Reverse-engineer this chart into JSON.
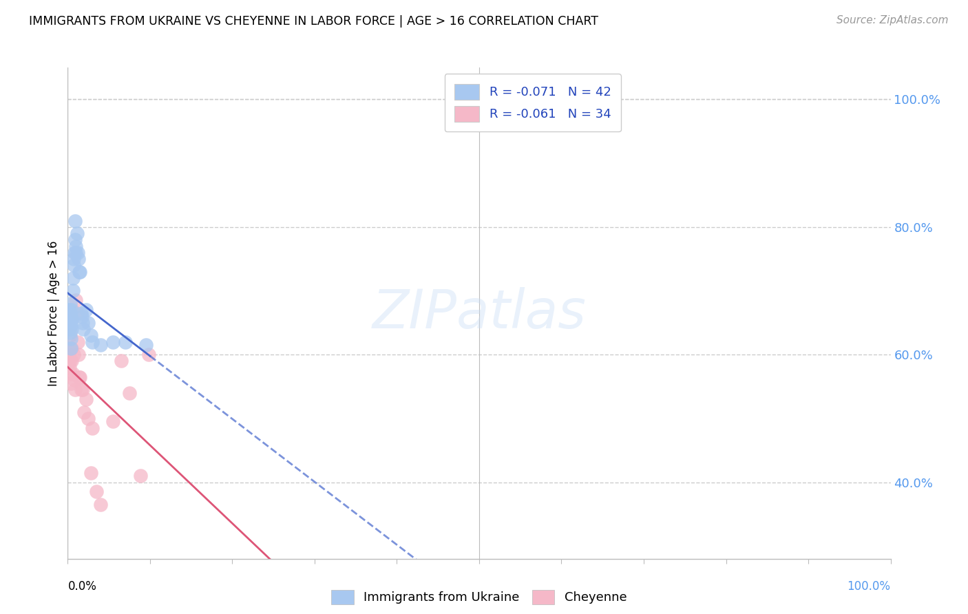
{
  "title": "IMMIGRANTS FROM UKRAINE VS CHEYENNE IN LABOR FORCE | AGE > 16 CORRELATION CHART",
  "source": "Source: ZipAtlas.com",
  "ylabel": "In Labor Force | Age > 16",
  "legend_r1": "R = -0.071",
  "legend_n1": "N = 42",
  "legend_r2": "R = -0.061",
  "legend_n2": "N = 34",
  "legend_label1": "Immigrants from Ukraine",
  "legend_label2": "Cheyenne",
  "blue_color": "#a8c8f0",
  "pink_color": "#f5b8c8",
  "blue_line_color": "#4466cc",
  "pink_line_color": "#dd5577",
  "ytick_color": "#5599ee",
  "background_color": "#ffffff",
  "grid_color": "#cccccc",
  "ukraine_x": [
    0.001,
    0.001,
    0.002,
    0.002,
    0.002,
    0.003,
    0.003,
    0.003,
    0.003,
    0.004,
    0.004,
    0.004,
    0.004,
    0.005,
    0.005,
    0.005,
    0.006,
    0.006,
    0.007,
    0.007,
    0.008,
    0.009,
    0.009,
    0.01,
    0.01,
    0.011,
    0.012,
    0.013,
    0.014,
    0.015,
    0.016,
    0.017,
    0.018,
    0.019,
    0.022,
    0.025,
    0.028,
    0.03,
    0.04,
    0.055,
    0.07,
    0.095
  ],
  "ukraine_y": [
    0.655,
    0.67,
    0.64,
    0.67,
    0.66,
    0.68,
    0.665,
    0.65,
    0.635,
    0.66,
    0.645,
    0.625,
    0.61,
    0.67,
    0.655,
    0.64,
    0.72,
    0.7,
    0.75,
    0.74,
    0.76,
    0.78,
    0.81,
    0.77,
    0.76,
    0.79,
    0.76,
    0.75,
    0.73,
    0.73,
    0.665,
    0.66,
    0.65,
    0.64,
    0.67,
    0.65,
    0.63,
    0.62,
    0.615,
    0.62,
    0.62,
    0.615
  ],
  "cheyenne_x": [
    0.001,
    0.001,
    0.002,
    0.002,
    0.003,
    0.003,
    0.004,
    0.004,
    0.005,
    0.005,
    0.006,
    0.007,
    0.008,
    0.009,
    0.01,
    0.011,
    0.012,
    0.013,
    0.014,
    0.015,
    0.016,
    0.018,
    0.02,
    0.022,
    0.025,
    0.028,
    0.03,
    0.035,
    0.04,
    0.055,
    0.065,
    0.075,
    0.088,
    0.098
  ],
  "cheyenne_y": [
    0.6,
    0.59,
    0.61,
    0.58,
    0.63,
    0.59,
    0.57,
    0.555,
    0.61,
    0.59,
    0.57,
    0.6,
    0.56,
    0.545,
    0.685,
    0.665,
    0.62,
    0.6,
    0.565,
    0.565,
    0.545,
    0.545,
    0.51,
    0.53,
    0.5,
    0.415,
    0.485,
    0.385,
    0.365,
    0.495,
    0.59,
    0.54,
    0.41,
    0.6
  ],
  "xlim": [
    0.0,
    1.0
  ],
  "ylim": [
    0.28,
    1.05
  ],
  "yticks": [
    0.4,
    0.6,
    0.8,
    1.0
  ],
  "ytick_labels": [
    "40.0%",
    "60.0%",
    "80.0%",
    "100.0%"
  ]
}
